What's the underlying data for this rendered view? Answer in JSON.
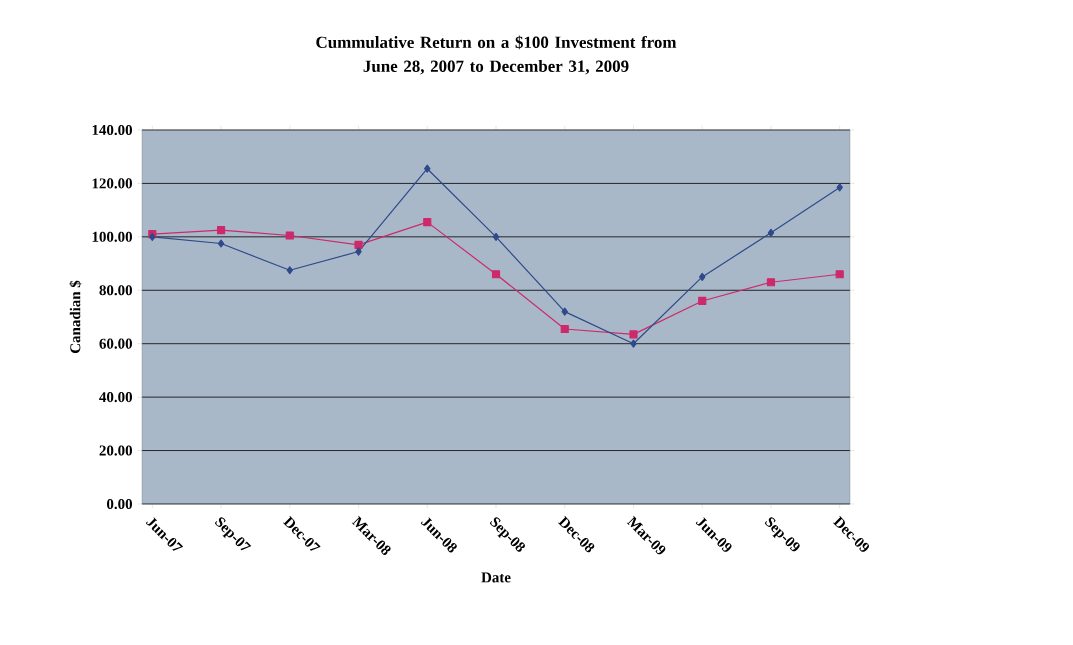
{
  "chart_data": {
    "type": "line",
    "title": "Cummulative Return on a $100 Investment from\nJune 28, 2007 to December 31, 2009",
    "xlabel": "Date",
    "ylabel": "Canadian $",
    "categories": [
      "Jun-07",
      "Sep-07",
      "Dec-07",
      "Mar-08",
      "Jun-08",
      "Sep-08",
      "Dec-08",
      "Mar-09",
      "Jun-09",
      "Sep-09",
      "Dec-09"
    ],
    "series": [
      {
        "color": "#2e4a8a",
        "marker": "diamond",
        "values": [
          100,
          97.5,
          87.5,
          94.5,
          125.5,
          100,
          72,
          60,
          85,
          101.5,
          118.5
        ]
      },
      {
        "color": "#cc2a6a",
        "marker": "square",
        "values": [
          101,
          102.5,
          100.5,
          97,
          105.5,
          86,
          65.5,
          63.5,
          76,
          83,
          86
        ]
      }
    ],
    "ylim": [
      0,
      140
    ],
    "yticks": [
      {
        "value": 0,
        "label": "0.00"
      },
      {
        "value": 20,
        "label": "20.00"
      },
      {
        "value": 40,
        "label": "40.00"
      },
      {
        "value": 60,
        "label": "60.00"
      },
      {
        "value": 80,
        "label": "80.00"
      },
      {
        "value": 100,
        "label": "100.00"
      },
      {
        "value": 120,
        "label": "120.00"
      },
      {
        "value": 140,
        "label": "140.00"
      }
    ],
    "grid": "y"
  }
}
